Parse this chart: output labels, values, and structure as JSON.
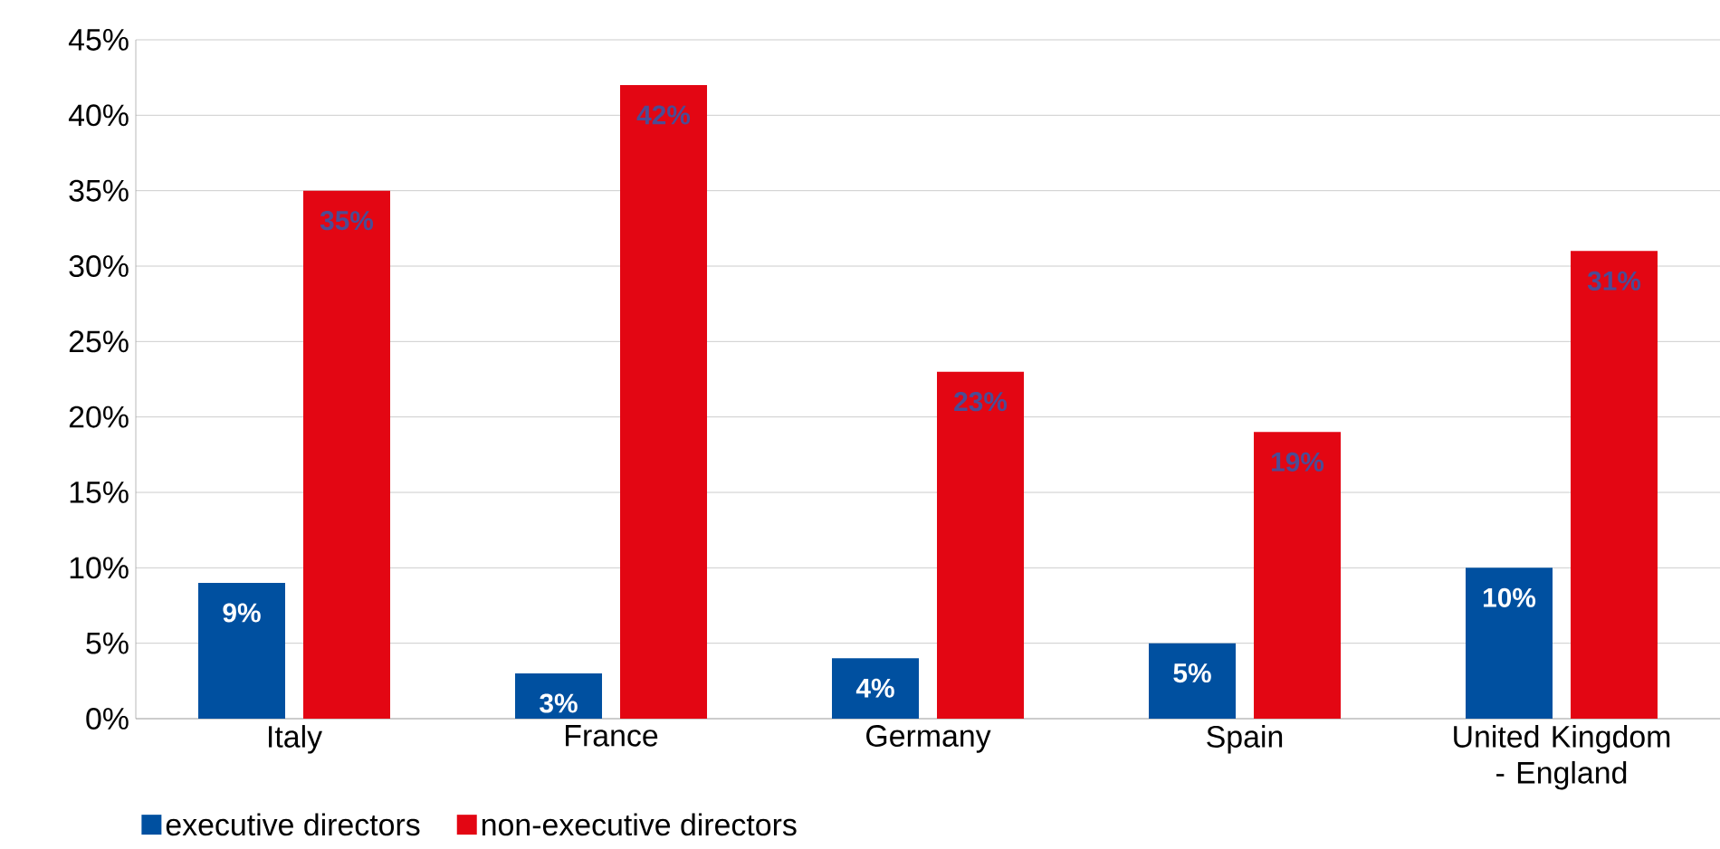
{
  "chart_data": {
    "type": "bar",
    "categories": [
      "Italy",
      "France",
      "Germany",
      "Spain",
      "United Kingdom - England"
    ],
    "series": [
      {
        "name": "executive directors",
        "color": "#0050a0",
        "values": [
          9,
          3,
          4,
          5,
          10
        ],
        "value_labels": [
          "9%",
          "3%",
          "4%",
          "5%",
          "10%"
        ]
      },
      {
        "name": "non-executive directors",
        "color": "#e30613",
        "values": [
          35,
          42,
          23,
          19,
          31
        ],
        "value_labels": [
          "35%",
          "42%",
          "23%",
          "19%",
          "31%"
        ]
      }
    ],
    "ylim": [
      0,
      45
    ],
    "yticks": [
      {
        "value": 0,
        "label": "0%"
      },
      {
        "value": 5,
        "label": "5%"
      },
      {
        "value": 10,
        "label": "10%"
      },
      {
        "value": 15,
        "label": "15%"
      },
      {
        "value": 20,
        "label": "20%"
      },
      {
        "value": 25,
        "label": "25%"
      },
      {
        "value": 30,
        "label": "30%"
      },
      {
        "value": 35,
        "label": "35%"
      },
      {
        "value": 40,
        "label": "40%"
      },
      {
        "value": 45,
        "label": "45%"
      }
    ],
    "grid": "y",
    "legend": "bottom left"
  }
}
